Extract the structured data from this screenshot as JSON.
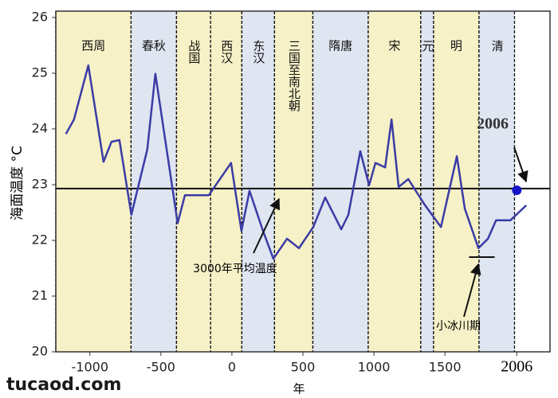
{
  "chart_data": {
    "type": "line",
    "y_label": "海面温度 °C",
    "x_label": "年",
    "x": [
      -1169,
      -1112,
      -1011,
      -904,
      -848,
      -792,
      -708,
      -596,
      -539,
      -382,
      -331,
      -163,
      -6,
      67,
      124,
      219,
      292,
      388,
      472,
      573,
      657,
      770,
      820,
      904,
      966,
      1011,
      1079,
      1124,
      1174,
      1242,
      1360,
      1472,
      1584,
      1640,
      1736,
      1803,
      1860,
      1961,
      2073
    ],
    "values": [
      23.91,
      24.17,
      25.14,
      23.41,
      23.77,
      23.8,
      22.46,
      23.63,
      24.99,
      22.31,
      22.81,
      22.81,
      23.39,
      22.17,
      22.89,
      22.17,
      21.67,
      22.03,
      21.86,
      22.24,
      22.77,
      22.2,
      22.46,
      23.6,
      22.99,
      23.39,
      23.31,
      24.17,
      22.96,
      23.1,
      22.63,
      22.24,
      23.51,
      22.57,
      21.86,
      22.03,
      22.36,
      22.36,
      22.63
    ],
    "color": "#3b3ba6",
    "xlim": [
      -1240,
      2240
    ],
    "ylim": [
      20,
      26
    ],
    "xticks": [
      -1000,
      -500,
      0,
      500,
      1000,
      1500,
      2006
    ],
    "yticks": [
      20,
      21,
      22,
      23,
      24,
      25,
      26
    ],
    "periods": [
      {
        "label": "西周",
        "start": -1240,
        "end": -710,
        "color": "#f6f1c6"
      },
      {
        "label": "春秋",
        "start": -710,
        "end": -390,
        "color": "#dfe5f1"
      },
      {
        "label": "战国",
        "start": -390,
        "end": -150,
        "color": "#f6f1c6"
      },
      {
        "label": "西汉",
        "start": -150,
        "end": 70,
        "color": "#f6f1c6"
      },
      {
        "label": "东汉",
        "start": 70,
        "end": 300,
        "color": "#dfe5f1"
      },
      {
        "label": "三国至南北朝",
        "start": 300,
        "end": 570,
        "color": "#f6f1c6"
      },
      {
        "label": "隋唐",
        "start": 570,
        "end": 960,
        "color": "#dfe5f1"
      },
      {
        "label": "宋",
        "start": 960,
        "end": 1330,
        "color": "#f6f1c6"
      },
      {
        "label": "元",
        "start": 1330,
        "end": 1420,
        "color": "#dfe5f1"
      },
      {
        "label": "明",
        "start": 1420,
        "end": 1740,
        "color": "#f6f1c6"
      },
      {
        "label": "清",
        "start": 1740,
        "end": 1990,
        "color": "#dfe5f1"
      }
    ],
    "reference_line": {
      "label": "3000年平均温度",
      "value": 22.93
    },
    "highlight": {
      "label": "2006",
      "x": 2006,
      "y": 22.9,
      "color": "#1515c8"
    },
    "little_ice_age": {
      "label": "小冰川期",
      "x": [
        1670,
        1850
      ],
      "y": 21.7
    },
    "watermark": "tucaod.com"
  }
}
